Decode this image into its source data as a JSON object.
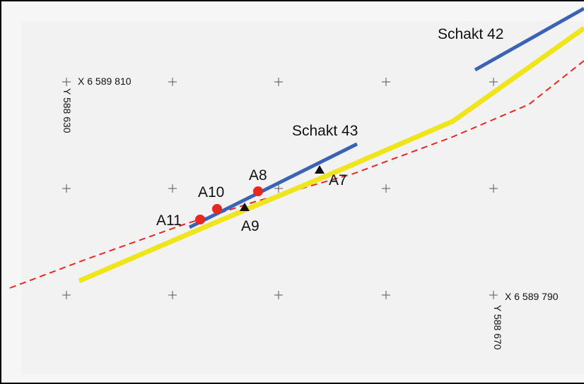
{
  "colors": {
    "shaft": "#3a63b5",
    "yellow_line": "#f0e41a",
    "dashed_line": "#e8271f",
    "point_red": "#e8271f",
    "point_black": "#111111",
    "background": "#f6f6f6"
  },
  "shafts": [
    {
      "name": "Schakt 42"
    },
    {
      "name": "Schakt 43"
    }
  ],
  "points_red": [
    {
      "name": "A8"
    },
    {
      "name": "A10"
    },
    {
      "name": "A11"
    }
  ],
  "points_black": [
    {
      "name": "A7"
    },
    {
      "name": "A9"
    }
  ],
  "coordinates": [
    {
      "x_label": "X 6 589 810",
      "y_label": "Y 588 630"
    },
    {
      "x_label": "X 6 589 790",
      "y_label": "Y 588 670"
    }
  ]
}
